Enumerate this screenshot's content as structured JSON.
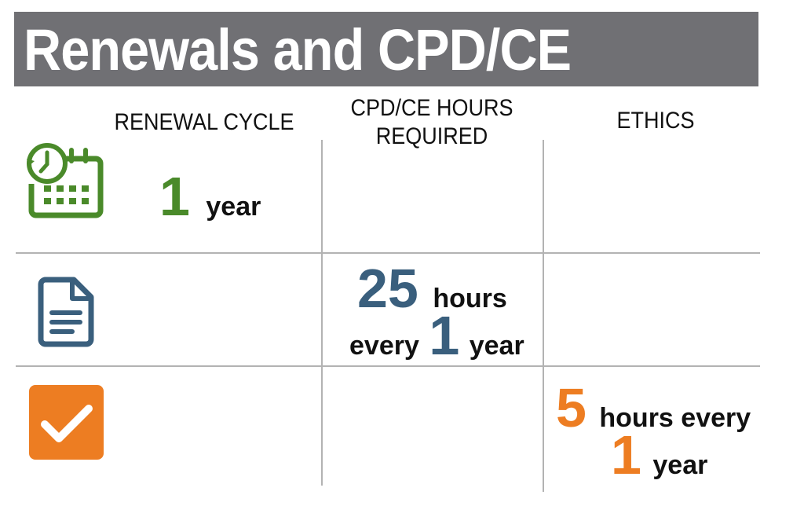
{
  "title": "Renewals and CPD/CE",
  "headers": {
    "renewal_cycle": "RENEWAL CYCLE",
    "cpd_line1": "CPD/CE HOURS",
    "cpd_line2": "REQUIRED",
    "ethics": "ETHICS"
  },
  "renewal": {
    "number": "1",
    "unit": "year"
  },
  "cpd": {
    "hours": "25",
    "hours_label": "hours",
    "every_label": "every",
    "period": "1",
    "period_unit": "year"
  },
  "ethics": {
    "hours": "5",
    "hours_label": "hours every",
    "period": "1",
    "period_unit": "year"
  },
  "colors": {
    "title_bar": "#707074",
    "green": "#4a8a2a",
    "blue": "#3a5f7d",
    "orange": "#ed7d22",
    "grid": "#b3b3b3"
  },
  "icons": [
    "calendar-clock-icon",
    "document-icon",
    "checkbox-icon"
  ]
}
